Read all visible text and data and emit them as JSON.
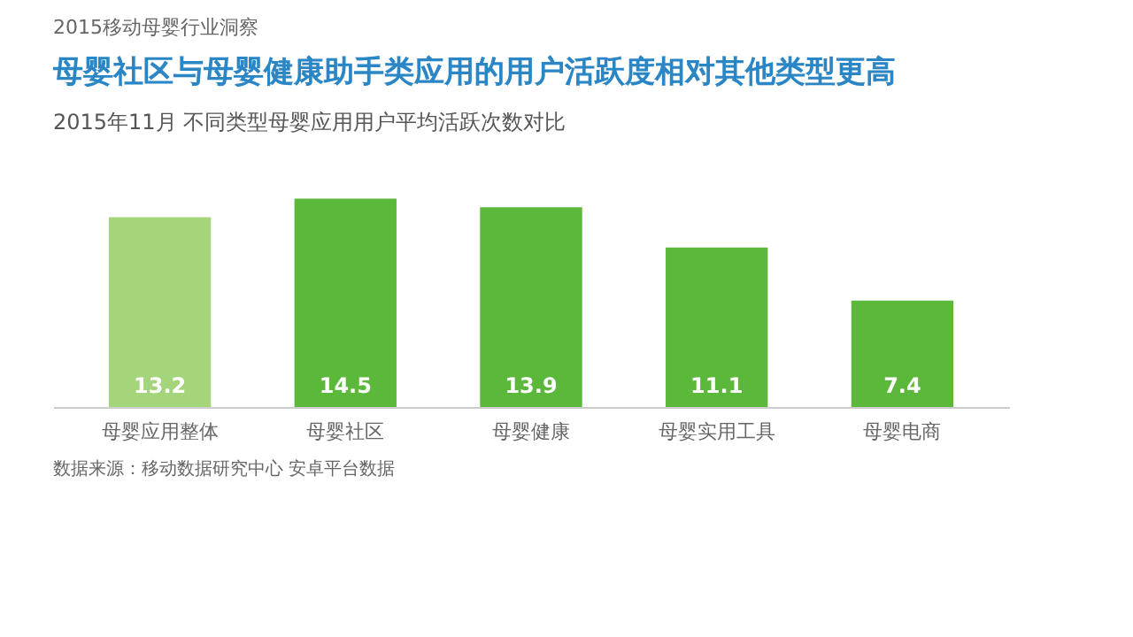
{
  "chart_data": {
    "type": "bar",
    "title": "母婴社区与母婴健康助手类应用的用户活跃度相对其他类型更高",
    "subtitle": "2015年11月 不同类型母婴应用用户平均活跃次数对比",
    "annotations": [
      "2015移动母婴行业洞察",
      "数据来源：移动数据研究中心 安卓平台数据"
    ],
    "categories": [
      "母婴应用整体",
      "母婴社区",
      "母婴健康",
      "母婴实用工具",
      "母婴电商"
    ],
    "values": [
      13.2,
      14.5,
      13.9,
      11.1,
      7.4
    ],
    "colors": [
      "#a5d57a",
      "#5cb83a",
      "#5cb83a",
      "#5cb83a",
      "#5cb83a"
    ],
    "data_labels": true
  }
}
